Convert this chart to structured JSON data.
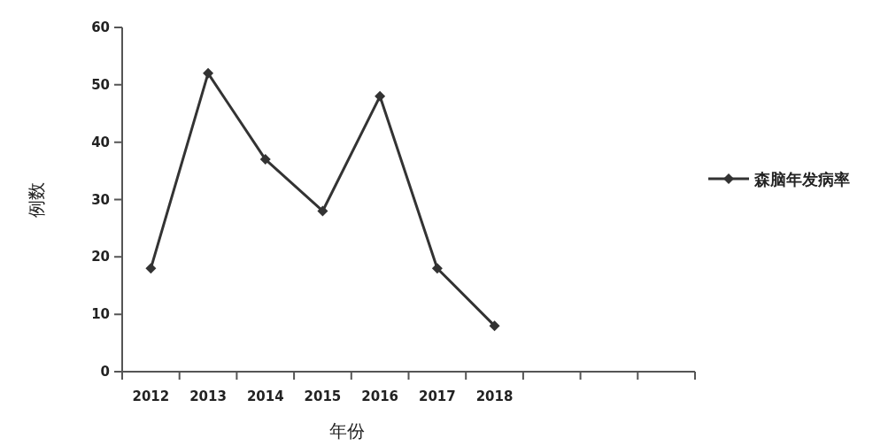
{
  "chart_data": {
    "type": "line",
    "xlabel": "年份",
    "ylabel": "例数",
    "categories": [
      "2012",
      "2013",
      "2014",
      "2015",
      "2016",
      "2017",
      "2018",
      null,
      null,
      null
    ],
    "series": [
      {
        "name": "森脑年发病率",
        "color": "#333333",
        "values": [
          18,
          52,
          37,
          28,
          48,
          18,
          8,
          null,
          null,
          null
        ]
      }
    ],
    "ylim": [
      0,
      60
    ],
    "yticks": [
      0,
      10,
      20,
      30,
      40,
      50,
      60
    ],
    "marker": "diamond",
    "line_style": "solid",
    "legend": "right",
    "grid": false
  }
}
